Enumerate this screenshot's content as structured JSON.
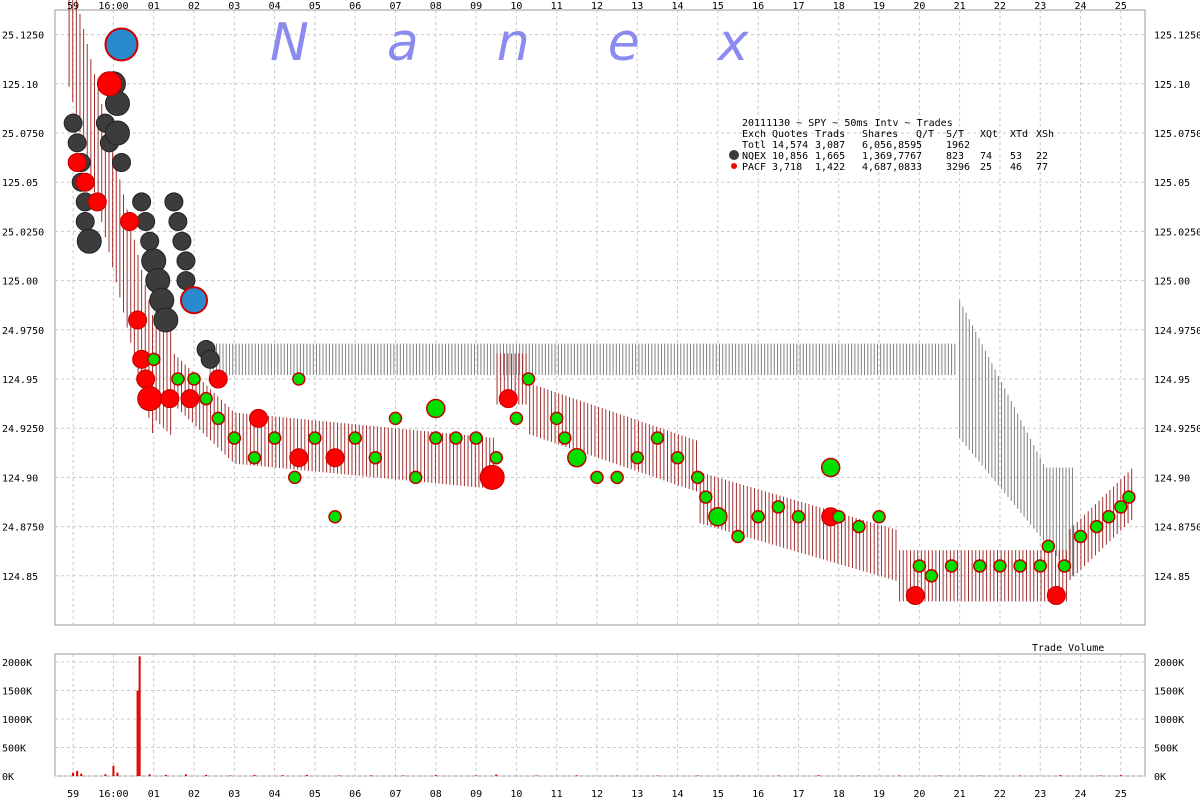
{
  "chart_data": {
    "type": "scatter",
    "title": "20111130 ~ SPY ~ 50ms Intv ~ Trades",
    "watermark": "Nanex",
    "time_ticks": [
      "59",
      "16:00",
      "01",
      "02",
      "03",
      "04",
      "05",
      "06",
      "07",
      "08",
      "09",
      "10",
      "11",
      "12",
      "13",
      "14",
      "15",
      "16",
      "17",
      "18",
      "19",
      "20",
      "21",
      "22",
      "23",
      "24",
      "25"
    ],
    "price_ticks": [
      "25.1250",
      "125.10",
      "25.0750",
      "125.05",
      "25.0250",
      "125.00",
      "24.9750",
      "124.95",
      "24.9250",
      "124.90",
      "24.8750",
      "124.85"
    ],
    "price_ticks_right": [
      "125.1250",
      "125.10",
      "125.0750",
      "125.05",
      "125.0250",
      "125.00",
      "124.9750",
      "124.95",
      "124.9250",
      "124.90",
      "124.8750",
      "124.85"
    ],
    "ylim": [
      124.825,
      125.1375
    ],
    "volume_panel": {
      "label": "Trade Volume",
      "ticks": [
        "2000K",
        "1500K",
        "1000K",
        "500K",
        "0K"
      ],
      "ylim": [
        0,
        2000000
      ]
    },
    "legend": {
      "header": [
        "Exch",
        "Quotes",
        "Trads",
        "Shares",
        "Q/T",
        "S/T",
        "XQt",
        "XTd",
        "XSh"
      ],
      "rows": [
        {
          "exch": "Totl",
          "quotes": "14,574",
          "trads": "3,087",
          "shares": "6,056,859",
          "qt": "5",
          "st": "1962",
          "xqt": "",
          "xtd": "",
          "xsh": ""
        },
        {
          "exch": "NQEX",
          "quotes": "10,856",
          "trads": "1,665",
          "shares": "1,369,776",
          "qt": "7",
          "st": "823",
          "xqt": "74",
          "xtd": "53",
          "xsh": "22",
          "marker_color": "#3c3c3c"
        },
        {
          "exch": "PACF",
          "quotes": "3,718",
          "trads": "1,422",
          "shares": "4,687,083",
          "qt": "3",
          "st": "3296",
          "xqt": "25",
          "xtd": "46",
          "xsh": "77",
          "marker_color": "#ff0000"
        }
      ]
    },
    "series": [
      {
        "name": "NQEX",
        "color": "#3c3c3c"
      },
      {
        "name": "PACF",
        "color": "#ff0000"
      }
    ],
    "colors": {
      "quote_band_nqex": "#808080",
      "quote_band_pacf": "#a03030",
      "trade_fill": "#00e000",
      "trade_stroke": "#c00000",
      "large_trade": "#2a8ad0",
      "grid": "#c8c8c8",
      "volume_bar": "#e00000"
    },
    "trades_nqex": [
      {
        "t": 59.0,
        "p": 125.08,
        "s": 2
      },
      {
        "t": 59.1,
        "p": 125.07,
        "s": 2
      },
      {
        "t": 59.2,
        "p": 125.06,
        "s": 2
      },
      {
        "t": 59.2,
        "p": 125.05,
        "s": 2
      },
      {
        "t": 59.3,
        "p": 125.04,
        "s": 2
      },
      {
        "t": 59.3,
        "p": 125.03,
        "s": 2
      },
      {
        "t": 59.4,
        "p": 125.02,
        "s": 3
      },
      {
        "t": 59.8,
        "p": 125.08,
        "s": 2
      },
      {
        "t": 59.9,
        "p": 125.07,
        "s": 2
      },
      {
        "t": 60.0,
        "p": 125.1,
        "s": 3
      },
      {
        "t": 60.1,
        "p": 125.09,
        "s": 3
      },
      {
        "t": 60.1,
        "p": 125.075,
        "s": 3
      },
      {
        "t": 60.2,
        "p": 125.06,
        "s": 2
      },
      {
        "t": 60.7,
        "p": 125.04,
        "s": 2
      },
      {
        "t": 60.8,
        "p": 125.03,
        "s": 2
      },
      {
        "t": 60.9,
        "p": 125.02,
        "s": 2
      },
      {
        "t": 61.0,
        "p": 125.01,
        "s": 3
      },
      {
        "t": 61.1,
        "p": 125.0,
        "s": 3
      },
      {
        "t": 61.2,
        "p": 124.99,
        "s": 3
      },
      {
        "t": 61.3,
        "p": 124.98,
        "s": 3
      },
      {
        "t": 61.5,
        "p": 125.04,
        "s": 2
      },
      {
        "t": 61.6,
        "p": 125.03,
        "s": 2
      },
      {
        "t": 61.7,
        "p": 125.02,
        "s": 2
      },
      {
        "t": 61.8,
        "p": 125.01,
        "s": 2
      },
      {
        "t": 61.8,
        "p": 125.0,
        "s": 2
      },
      {
        "t": 62.3,
        "p": 124.965,
        "s": 2
      },
      {
        "t": 62.4,
        "p": 124.96,
        "s": 2
      }
    ],
    "trades_pacf": [
      {
        "t": 59.1,
        "p": 125.06,
        "s": 2
      },
      {
        "t": 59.3,
        "p": 125.05,
        "s": 2
      },
      {
        "t": 59.6,
        "p": 125.04,
        "s": 2
      },
      {
        "t": 59.9,
        "p": 125.1,
        "s": 3
      },
      {
        "t": 60.1,
        "p": 125.12,
        "s": 2
      },
      {
        "t": 60.4,
        "p": 125.03,
        "s": 2
      },
      {
        "t": 60.6,
        "p": 124.98,
        "s": 2
      },
      {
        "t": 60.7,
        "p": 124.96,
        "s": 2
      },
      {
        "t": 60.8,
        "p": 124.95,
        "s": 2
      },
      {
        "t": 60.9,
        "p": 124.94,
        "s": 3
      },
      {
        "t": 61.4,
        "p": 124.94,
        "s": 2
      },
      {
        "t": 61.9,
        "p": 124.94,
        "s": 2
      },
      {
        "t": 62.6,
        "p": 124.95,
        "s": 2
      },
      {
        "t": 63.6,
        "p": 124.93,
        "s": 2
      },
      {
        "t": 64.6,
        "p": 124.91,
        "s": 2
      },
      {
        "t": 65.5,
        "p": 124.91,
        "s": 2
      },
      {
        "t": 69.4,
        "p": 124.9,
        "s": 3
      },
      {
        "t": 69.8,
        "p": 124.94,
        "s": 2
      },
      {
        "t": 77.8,
        "p": 124.88,
        "s": 2
      },
      {
        "t": 79.9,
        "p": 124.84,
        "s": 2
      },
      {
        "t": 83.4,
        "p": 124.84,
        "s": 2
      }
    ],
    "trades_green": [
      {
        "t": 61.0,
        "p": 124.96,
        "s": 1
      },
      {
        "t": 61.6,
        "p": 124.95,
        "s": 1
      },
      {
        "t": 62.0,
        "p": 124.95,
        "s": 1
      },
      {
        "t": 62.3,
        "p": 124.94,
        "s": 1
      },
      {
        "t": 62.6,
        "p": 124.93,
        "s": 1
      },
      {
        "t": 63.0,
        "p": 124.92,
        "s": 1
      },
      {
        "t": 63.5,
        "p": 124.91,
        "s": 1
      },
      {
        "t": 64.0,
        "p": 124.92,
        "s": 1
      },
      {
        "t": 64.5,
        "p": 124.9,
        "s": 1
      },
      {
        "t": 64.6,
        "p": 124.95,
        "s": 1
      },
      {
        "t": 65.0,
        "p": 124.92,
        "s": 1
      },
      {
        "t": 65.5,
        "p": 124.88,
        "s": 1
      },
      {
        "t": 66.0,
        "p": 124.92,
        "s": 1
      },
      {
        "t": 66.5,
        "p": 124.91,
        "s": 1
      },
      {
        "t": 67.0,
        "p": 124.93,
        "s": 1
      },
      {
        "t": 67.5,
        "p": 124.9,
        "s": 1
      },
      {
        "t": 68.0,
        "p": 124.92,
        "s": 1
      },
      {
        "t": 68.0,
        "p": 124.935,
        "s": 2
      },
      {
        "t": 68.5,
        "p": 124.92,
        "s": 1
      },
      {
        "t": 69.0,
        "p": 124.92,
        "s": 1
      },
      {
        "t": 69.5,
        "p": 124.91,
        "s": 1
      },
      {
        "t": 70.0,
        "p": 124.93,
        "s": 1
      },
      {
        "t": 70.3,
        "p": 124.95,
        "s": 1
      },
      {
        "t": 71.0,
        "p": 124.93,
        "s": 1
      },
      {
        "t": 71.2,
        "p": 124.92,
        "s": 1
      },
      {
        "t": 71.5,
        "p": 124.91,
        "s": 2
      },
      {
        "t": 72.0,
        "p": 124.9,
        "s": 1
      },
      {
        "t": 72.5,
        "p": 124.9,
        "s": 1
      },
      {
        "t": 73.0,
        "p": 124.91,
        "s": 1
      },
      {
        "t": 73.5,
        "p": 124.92,
        "s": 1
      },
      {
        "t": 74.0,
        "p": 124.91,
        "s": 1
      },
      {
        "t": 74.5,
        "p": 124.9,
        "s": 1
      },
      {
        "t": 74.7,
        "p": 124.89,
        "s": 1
      },
      {
        "t": 75.0,
        "p": 124.88,
        "s": 2
      },
      {
        "t": 75.5,
        "p": 124.87,
        "s": 1
      },
      {
        "t": 76.0,
        "p": 124.88,
        "s": 1
      },
      {
        "t": 76.5,
        "p": 124.885,
        "s": 1
      },
      {
        "t": 77.0,
        "p": 124.88,
        "s": 1
      },
      {
        "t": 77.8,
        "p": 124.905,
        "s": 2
      },
      {
        "t": 78.0,
        "p": 124.88,
        "s": 1
      },
      {
        "t": 78.5,
        "p": 124.875,
        "s": 1
      },
      {
        "t": 79.0,
        "p": 124.88,
        "s": 1
      },
      {
        "t": 80.0,
        "p": 124.855,
        "s": 1
      },
      {
        "t": 80.3,
        "p": 124.85,
        "s": 1
      },
      {
        "t": 80.8,
        "p": 124.855,
        "s": 1
      },
      {
        "t": 81.5,
        "p": 124.855,
        "s": 1
      },
      {
        "t": 82.0,
        "p": 124.855,
        "s": 1
      },
      {
        "t": 82.5,
        "p": 124.855,
        "s": 1
      },
      {
        "t": 83.0,
        "p": 124.855,
        "s": 1
      },
      {
        "t": 83.2,
        "p": 124.865,
        "s": 1
      },
      {
        "t": 83.6,
        "p": 124.855,
        "s": 1
      },
      {
        "t": 84.0,
        "p": 124.87,
        "s": 1
      },
      {
        "t": 84.4,
        "p": 124.875,
        "s": 1
      },
      {
        "t": 84.7,
        "p": 124.88,
        "s": 1
      },
      {
        "t": 85.0,
        "p": 124.885,
        "s": 1
      },
      {
        "t": 85.2,
        "p": 124.89,
        "s": 1
      }
    ],
    "large_trades": [
      {
        "t": 60.2,
        "p": 125.12,
        "s": 4
      },
      {
        "t": 62.0,
        "p": 124.99,
        "s": 3
      }
    ],
    "volume_bars": [
      {
        "t": 59.0,
        "v": 60000
      },
      {
        "t": 59.1,
        "v": 90000
      },
      {
        "t": 59.2,
        "v": 40000
      },
      {
        "t": 59.8,
        "v": 30000
      },
      {
        "t": 60.0,
        "v": 180000
      },
      {
        "t": 60.1,
        "v": 60000
      },
      {
        "t": 60.6,
        "v": 1500000
      },
      {
        "t": 60.65,
        "v": 2100000
      },
      {
        "t": 60.9,
        "v": 30000
      },
      {
        "t": 61.3,
        "v": 20000
      },
      {
        "t": 61.8,
        "v": 30000
      },
      {
        "t": 62.3,
        "v": 20000
      },
      {
        "t": 62.9,
        "v": 10000
      },
      {
        "t": 63.5,
        "v": 20000
      },
      {
        "t": 64.2,
        "v": 15000
      },
      {
        "t": 64.8,
        "v": 20000
      },
      {
        "t": 65.6,
        "v": 10000
      },
      {
        "t": 66.4,
        "v": 12000
      },
      {
        "t": 67.2,
        "v": 10000
      },
      {
        "t": 68.0,
        "v": 15000
      },
      {
        "t": 69.0,
        "v": 10000
      },
      {
        "t": 69.5,
        "v": 25000
      },
      {
        "t": 70.5,
        "v": 10000
      },
      {
        "t": 71.5,
        "v": 12000
      },
      {
        "t": 72.5,
        "v": 8000
      },
      {
        "t": 73.5,
        "v": 10000
      },
      {
        "t": 74.5,
        "v": 10000
      },
      {
        "t": 75.5,
        "v": 8000
      },
      {
        "t": 76.5,
        "v": 10000
      },
      {
        "t": 77.5,
        "v": 15000
      },
      {
        "t": 78.5,
        "v": 8000
      },
      {
        "t": 79.5,
        "v": 10000
      },
      {
        "t": 80.5,
        "v": 10000
      },
      {
        "t": 81.5,
        "v": 8000
      },
      {
        "t": 82.5,
        "v": 10000
      },
      {
        "t": 83.5,
        "v": 15000
      },
      {
        "t": 84.5,
        "v": 10000
      },
      {
        "t": 85.0,
        "v": 15000
      }
    ]
  }
}
